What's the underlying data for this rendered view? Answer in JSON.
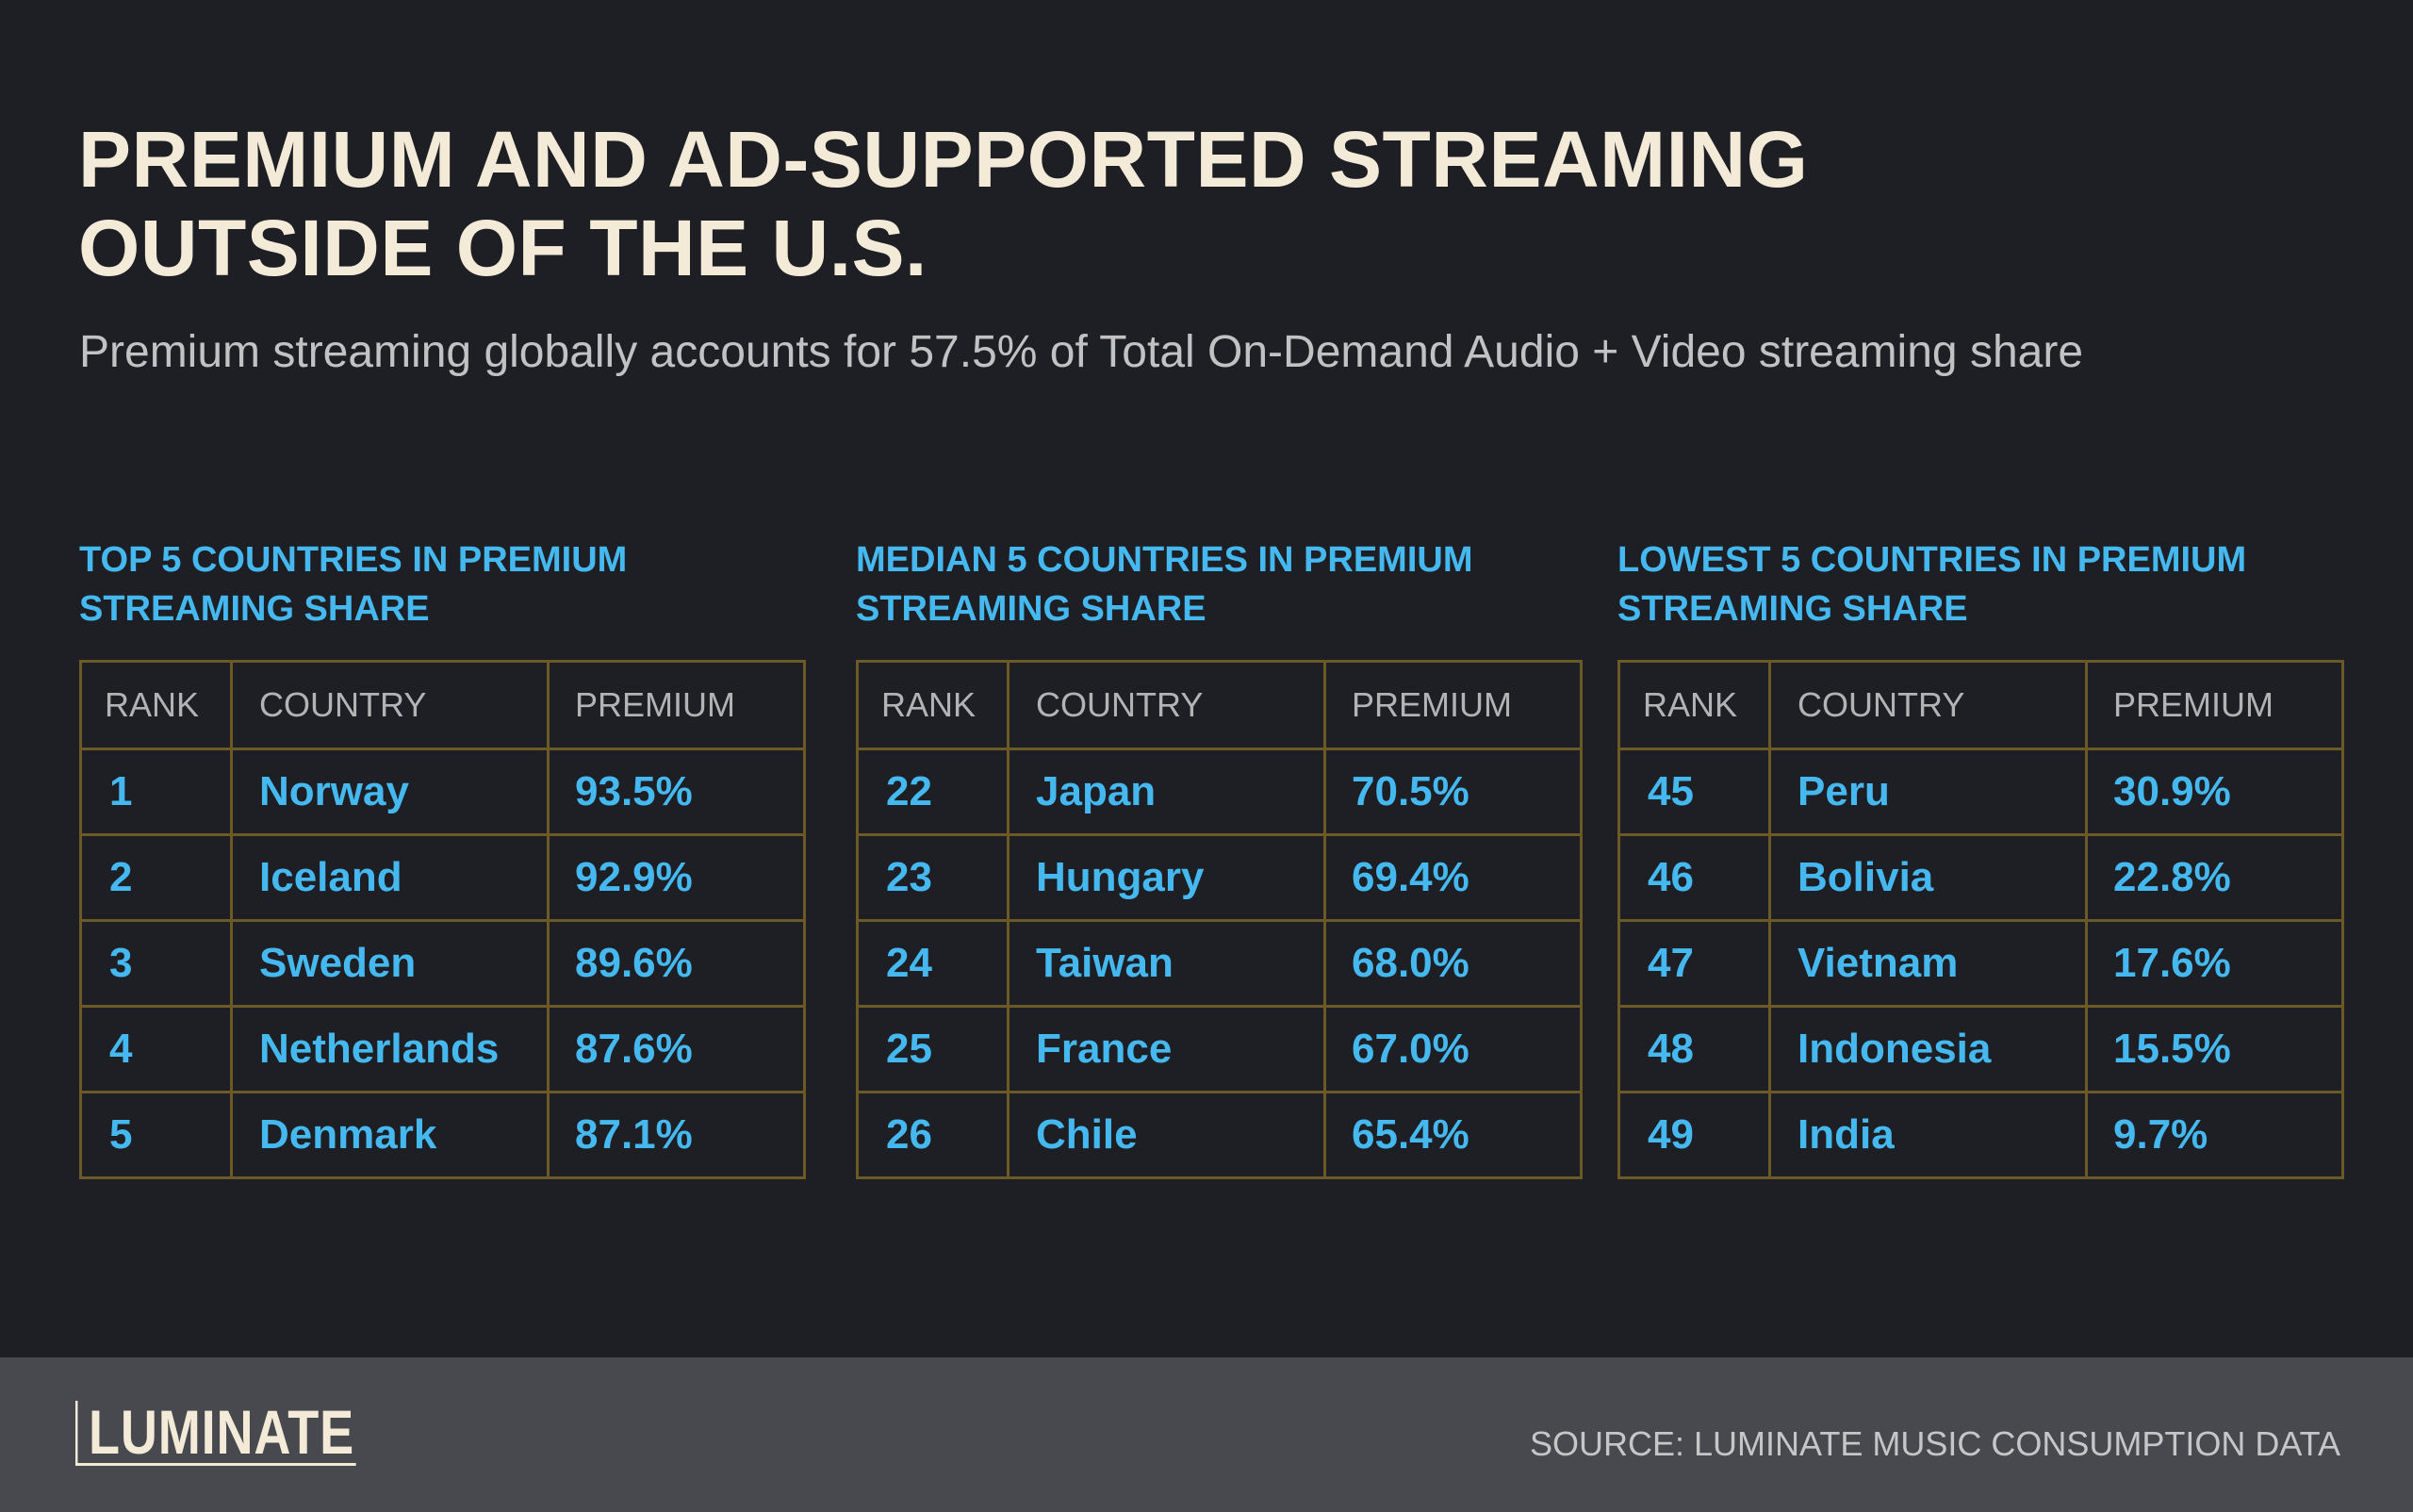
{
  "header": {
    "title_line1": "PREMIUM AND AD-SUPPORTED STREAMING",
    "title_line2": "OUTSIDE OF THE U.S.",
    "subtitle": "Premium streaming globally accounts for 57.5% of Total On-Demand Audio + Video streaming share"
  },
  "columns": {
    "rank": "RANK",
    "country": "COUNTRY",
    "premium": "PREMIUM"
  },
  "chart_data": [
    {
      "type": "table",
      "title_line1": "TOP 5 COUNTRIES IN PREMIUM",
      "title_line2": "STREAMING SHARE",
      "rows": [
        {
          "rank": "1",
          "country": "Norway",
          "premium": "93.5%"
        },
        {
          "rank": "2",
          "country": "Iceland",
          "premium": "92.9%"
        },
        {
          "rank": "3",
          "country": "Sweden",
          "premium": "89.6%"
        },
        {
          "rank": "4",
          "country": "Netherlands",
          "premium": "87.6%"
        },
        {
          "rank": "5",
          "country": "Denmark",
          "premium": "87.1%"
        }
      ]
    },
    {
      "type": "table",
      "title_line1": "MEDIAN 5 COUNTRIES IN PREMIUM",
      "title_line2": "STREAMING SHARE",
      "rows": [
        {
          "rank": "22",
          "country": "Japan",
          "premium": "70.5%"
        },
        {
          "rank": "23",
          "country": "Hungary",
          "premium": "69.4%"
        },
        {
          "rank": "24",
          "country": "Taiwan",
          "premium": "68.0%"
        },
        {
          "rank": "25",
          "country": "France",
          "premium": "67.0%"
        },
        {
          "rank": "26",
          "country": "Chile",
          "premium": "65.4%"
        }
      ]
    },
    {
      "type": "table",
      "title_line1": "LOWEST 5 COUNTRIES IN PREMIUM",
      "title_line2": "STREAMING SHARE",
      "rows": [
        {
          "rank": "45",
          "country": "Peru",
          "premium": "30.9%"
        },
        {
          "rank": "46",
          "country": "Bolivia",
          "premium": "22.8%"
        },
        {
          "rank": "47",
          "country": "Vietnam",
          "premium": "17.6%"
        },
        {
          "rank": "48",
          "country": "Indonesia",
          "premium": "15.5%"
        },
        {
          "rank": "49",
          "country": "India",
          "premium": "9.7%"
        }
      ]
    }
  ],
  "footer": {
    "logo_text": "LUMINATE",
    "source": "SOURCE: LUMINATE MUSIC CONSUMPTION DATA"
  }
}
